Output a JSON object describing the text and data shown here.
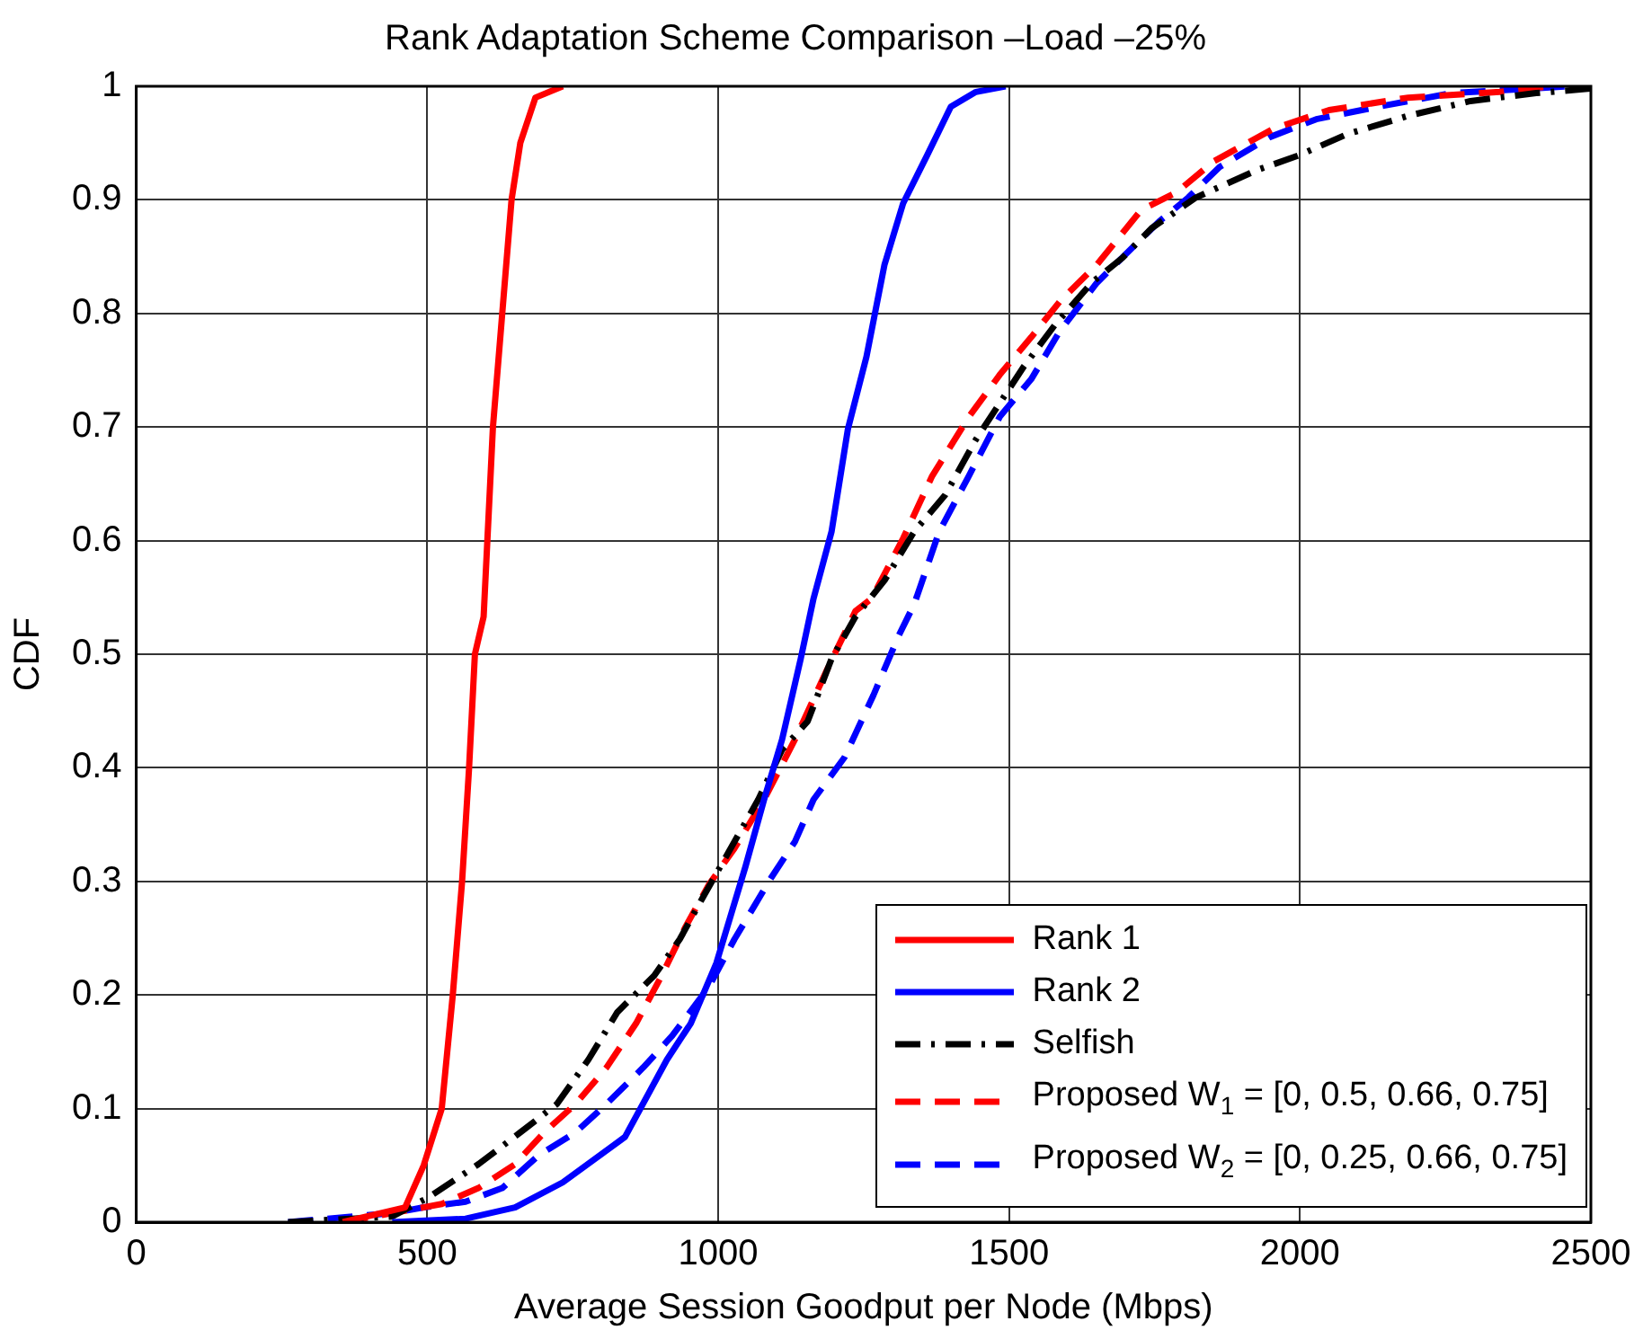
{
  "chart_data": {
    "type": "line",
    "title": "Rank Adaptation Scheme Comparison –Load –25%",
    "xlabel": "Average Session Goodput per Node (Mbps)",
    "ylabel": "CDF",
    "xlim": [
      0,
      2500
    ],
    "xticks": [
      0,
      500,
      1000,
      1500,
      2000,
      2500
    ],
    "ylim": [
      0,
      1
    ],
    "yticks": [
      0,
      0.1,
      0.2,
      0.3,
      0.4,
      0.5,
      0.6,
      0.7,
      0.8,
      0.9,
      1
    ],
    "grid": true,
    "legend": "bottom right",
    "marker": "none",
    "series": [
      {
        "name": "Rank 1",
        "color": "#ff0000",
        "line_style": "solid",
        "x": [
          355,
          462,
          494,
          525,
          544,
          560,
          572,
          582,
          597,
          613,
          629,
          645,
          660,
          686,
          733
        ],
        "values": [
          0,
          0.013,
          0.05,
          0.1,
          0.2,
          0.3,
          0.4,
          0.5,
          0.533,
          0.7,
          0.8,
          0.9,
          0.95,
          0.99,
          1
        ]
      },
      {
        "name": "Rank 2",
        "color": "#0000ff",
        "line_style": "solid",
        "x": [
          440,
          566,
          651,
          733,
          840,
          912,
          953,
          997,
          1047,
          1079,
          1110,
          1142,
          1164,
          1195,
          1223,
          1255,
          1286,
          1318,
          1359,
          1400,
          1443,
          1494
        ],
        "values": [
          0,
          0.003,
          0.013,
          0.035,
          0.075,
          0.143,
          0.175,
          0.228,
          0.313,
          0.372,
          0.425,
          0.496,
          0.549,
          0.608,
          0.698,
          0.762,
          0.843,
          0.897,
          0.939,
          0.982,
          0.995,
          1
        ]
      },
      {
        "name": "Selfish",
        "color": "#000000",
        "line_style": "dashdot",
        "x": [
          261,
          440,
          503,
          588,
          660,
          723,
          777,
          827,
          890,
          934,
          975,
          1016,
          1069,
          1110,
          1154,
          1195,
          1236,
          1286,
          1337,
          1390,
          1443,
          1484,
          1525,
          1579,
          1642,
          1695,
          1745,
          1821,
          1925,
          1997,
          2082,
          2186,
          2293,
          2406,
          2500
        ],
        "values": [
          0,
          0.005,
          0.022,
          0.051,
          0.079,
          0.104,
          0.143,
          0.185,
          0.217,
          0.249,
          0.287,
          0.324,
          0.372,
          0.416,
          0.441,
          0.496,
          0.533,
          0.565,
          0.608,
          0.64,
          0.689,
          0.721,
          0.753,
          0.79,
          0.827,
          0.849,
          0.875,
          0.902,
          0.926,
          0.939,
          0.958,
          0.974,
          0.987,
          0.994,
          0.998
        ]
      },
      {
        "name": "Proposed W$_{1}$ = [0, 0.5, 0.66, 0.75]",
        "color": "#ff0000",
        "line_style": "dashed",
        "x": [
          355,
          440,
          525,
          588,
          651,
          701,
          755,
          808,
          859,
          903,
          944,
          984,
          1028,
          1079,
          1132,
          1186,
          1236,
          1264,
          1318,
          1368,
          1431,
          1484,
          1538,
          1588,
          1651,
          1727,
          1789,
          1852,
          1956,
          2050,
          2186,
          2343,
          2428
        ],
        "values": [
          0,
          0.008,
          0.016,
          0.03,
          0.051,
          0.079,
          0.104,
          0.136,
          0.175,
          0.217,
          0.26,
          0.297,
          0.329,
          0.372,
          0.425,
          0.485,
          0.538,
          0.549,
          0.602,
          0.657,
          0.709,
          0.746,
          0.779,
          0.811,
          0.843,
          0.891,
          0.907,
          0.934,
          0.963,
          0.979,
          0.99,
          0.995,
          1
        ]
      },
      {
        "name": "Proposed W$_{2}$ = [0, 0.25, 0.66, 0.75]",
        "color": "#0000ff",
        "line_style": "dashed",
        "x": [
          261,
          440,
          494,
          566,
          629,
          692,
          755,
          808,
          871,
          921,
          984,
          1028,
          1091,
          1132,
          1164,
          1217,
          1267,
          1311,
          1337,
          1380,
          1431,
          1484,
          1538,
          1588,
          1651,
          1714,
          1758,
          1808,
          1862,
          1947,
          2028,
          2135,
          2261,
          2397,
          2460
        ],
        "values": [
          0,
          0.008,
          0.013,
          0.018,
          0.03,
          0.059,
          0.079,
          0.104,
          0.136,
          0.164,
          0.207,
          0.249,
          0.303,
          0.335,
          0.372,
          0.409,
          0.464,
          0.517,
          0.544,
          0.608,
          0.657,
          0.709,
          0.742,
          0.785,
          0.827,
          0.859,
          0.881,
          0.902,
          0.929,
          0.955,
          0.971,
          0.982,
          0.994,
          0.998,
          1
        ]
      }
    ]
  }
}
